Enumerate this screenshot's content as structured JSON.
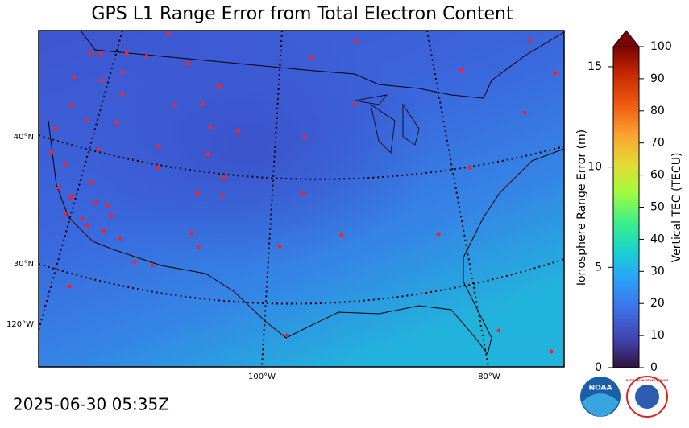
{
  "map": {
    "title": "GPS L1 Range Error from Total Electron Content",
    "lat_labels": [
      "40°N",
      "30°N"
    ],
    "lon_labels": [
      "120°W",
      "100°W",
      "80°W"
    ]
  },
  "colorbar": {
    "left_label": "Ionosphere Range Error (m)",
    "left_lim": [
      0,
      16
    ],
    "left_ticks": [
      0,
      5,
      10,
      15
    ],
    "right_label": "Vertical TEC (TECU)",
    "right_lim": [
      0,
      100
    ],
    "right_ticks": [
      0,
      10,
      20,
      30,
      40,
      50,
      60,
      70,
      80,
      90,
      100
    ]
  },
  "timestamp": "2025-06-30 05:35Z",
  "logos": {
    "noaa": "NOAA",
    "nws": "NATIONAL WEATHER SERVICE"
  }
}
